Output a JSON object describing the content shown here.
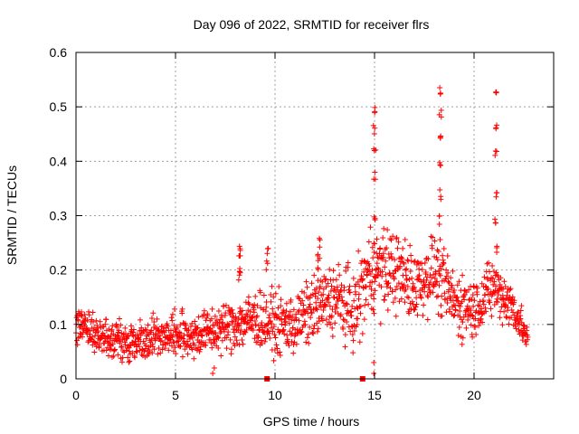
{
  "chart_data": {
    "type": "scatter",
    "title": "Day 096 of 2022, SRMTID for receiver flrs",
    "xlabel": "GPS time / hours",
    "ylabel": "SRMTID / TECUs",
    "xlim": [
      0,
      24
    ],
    "ylim": [
      0,
      0.6
    ],
    "xticks": [
      0,
      5,
      10,
      15,
      20
    ],
    "xtick_labels": [
      "0",
      "5",
      "10",
      "15",
      "20"
    ],
    "yticks": [
      0,
      0.1,
      0.2,
      0.3,
      0.4,
      0.5,
      0.6
    ],
    "ytick_labels": [
      "0",
      "0.1",
      "0.2",
      "0.3",
      "0.4",
      "0.5",
      "0.6"
    ],
    "grid": true,
    "series": [
      {
        "name": "SRMTID",
        "color": "#ff0000",
        "marker": "plus",
        "trend": [
          [
            0.0,
            0.09
          ],
          [
            0.5,
            0.1
          ],
          [
            1.0,
            0.08
          ],
          [
            2.0,
            0.07
          ],
          [
            3.0,
            0.07
          ],
          [
            4.0,
            0.08
          ],
          [
            5.0,
            0.08
          ],
          [
            6.0,
            0.08
          ],
          [
            7.0,
            0.09
          ],
          [
            8.0,
            0.1
          ],
          [
            9.0,
            0.11
          ],
          [
            10.0,
            0.1
          ],
          [
            11.0,
            0.1
          ],
          [
            12.0,
            0.13
          ],
          [
            13.0,
            0.15
          ],
          [
            14.0,
            0.12
          ],
          [
            14.5,
            0.18
          ],
          [
            15.0,
            0.2
          ],
          [
            16.0,
            0.2
          ],
          [
            17.0,
            0.17
          ],
          [
            18.0,
            0.2
          ],
          [
            19.0,
            0.14
          ],
          [
            20.0,
            0.13
          ],
          [
            21.0,
            0.17
          ],
          [
            22.0,
            0.13
          ],
          [
            22.7,
            0.07
          ]
        ],
        "spread": [
          [
            0.0,
            0.03
          ],
          [
            6.0,
            0.035
          ],
          [
            9.0,
            0.045
          ],
          [
            12.0,
            0.05
          ],
          [
            14.5,
            0.07
          ],
          [
            17.0,
            0.06
          ],
          [
            20.0,
            0.05
          ],
          [
            22.0,
            0.04
          ],
          [
            22.7,
            0.02
          ]
        ],
        "spikes": [
          {
            "x": 8.2,
            "values": [
              0.2,
              0.21,
              0.23,
              0.25
            ]
          },
          {
            "x": 9.6,
            "values": [
              0.22,
              0.24
            ]
          },
          {
            "x": 12.2,
            "values": [
              0.22,
              0.24,
              0.26
            ]
          },
          {
            "x": 15.0,
            "values": [
              0.25,
              0.3,
              0.38,
              0.43,
              0.47,
              0.5
            ]
          },
          {
            "x": 18.3,
            "values": [
              0.3,
              0.35,
              0.4,
              0.45,
              0.5,
              0.54
            ]
          },
          {
            "x": 21.1,
            "values": [
              0.25,
              0.3,
              0.35,
              0.42,
              0.48,
              0.54
            ]
          }
        ],
        "dips": [
          {
            "x": 6.9,
            "values": [
              0.01,
              0.02
            ]
          },
          {
            "x": 15.0,
            "values": [
              0.01,
              0.03
            ]
          }
        ],
        "baseline_markers": [
          9.6,
          14.4
        ]
      }
    ]
  }
}
